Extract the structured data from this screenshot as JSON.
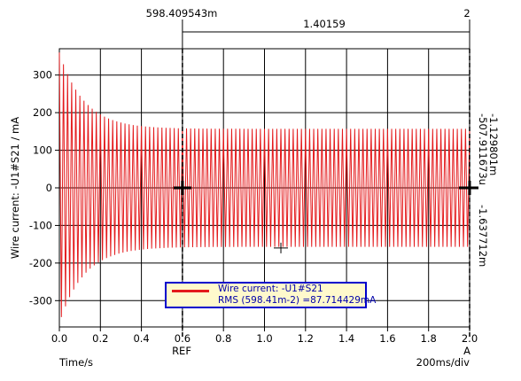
{
  "chart_data": {
    "type": "line",
    "ylabel": "Wire current: -U1#S21 / mA",
    "xlabel": "Time/s",
    "xlim": [
      0.0,
      2.0
    ],
    "ylim": [
      -370,
      370
    ],
    "x_ticks": [
      "0.0",
      "0.2",
      "0.4",
      "0.6",
      "0.8",
      "1.0",
      "1.2",
      "1.4",
      "1.6",
      "1.8",
      "2.0"
    ],
    "y_ticks": [
      "300",
      "200",
      "100",
      "0",
      "-100",
      "-200",
      "-300"
    ],
    "grid": true,
    "timebase": "200ms/div",
    "series": [
      {
        "name": "Wire current: -U1#S21",
        "color": "#e41a1c",
        "initial_amplitude_mA": 360,
        "steady_amplitude_mA": 157,
        "decay_time_constant_s": 0.12,
        "oscillation_period_s": 0.02,
        "x_start": 0.0,
        "x_end": 2.0
      }
    ],
    "cursors": {
      "ref": {
        "x": 0.6,
        "label": "REF",
        "top_label": "598.409543m"
      },
      "a": {
        "x": 2.0,
        "label": "A",
        "top_label": "2"
      },
      "delta_label": "1.40159"
    },
    "side_readouts": [
      "-507.911673u",
      "-1.637712m",
      "-1.129801m"
    ],
    "legend": {
      "position": "bottom-center",
      "line1": "Wire current: -U1#S21",
      "line2": "RMS (598.41m-2) =87.714429mA"
    }
  }
}
